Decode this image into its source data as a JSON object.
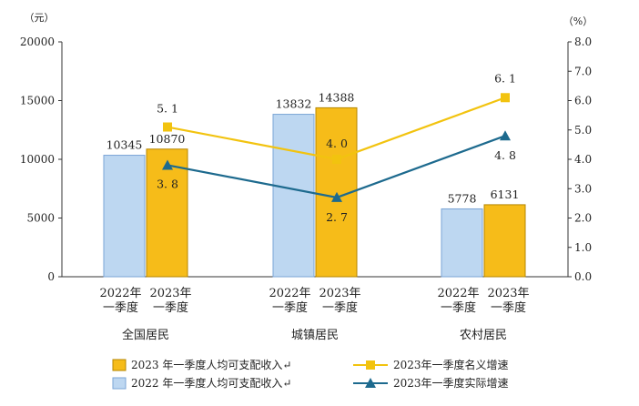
{
  "chart_data": {
    "type": "bar",
    "left_unit": "（元）",
    "right_unit": "（%）",
    "left_axis": {
      "min": 0,
      "max": 20000,
      "ticks": [
        "0",
        "5000",
        "10000",
        "15000",
        "20000"
      ]
    },
    "right_axis": {
      "min": 0,
      "max": 8,
      "ticks": [
        "0.0",
        "1.0",
        "2.0",
        "3.0",
        "4.0",
        "5.0",
        "6.0",
        "7.0",
        "8.0"
      ]
    },
    "groups": [
      {
        "name": "全国居民",
        "bar_labels": [
          "2022年\n一季度",
          "2023年\n一季度"
        ]
      },
      {
        "name": "城镇居民",
        "bar_labels": [
          "2022年\n一季度",
          "2023年\n一季度"
        ]
      },
      {
        "name": "农村居民",
        "bar_labels": [
          "2022年\n一季度",
          "2023年\n一季度"
        ]
      }
    ],
    "categories": [
      "全国居民",
      "城镇居民",
      "农村居民"
    ],
    "series": [
      {
        "name": "2022 年一季度人均可支配收入↵",
        "kind": "bar",
        "axis": "left",
        "color": "#bdd7f1",
        "border": "#7aa4d6",
        "values": [
          10345,
          13832,
          5778
        ],
        "labels": [
          "10345",
          "13832",
          "5778"
        ]
      },
      {
        "name": "2023 年一季度人均可支配收入↵",
        "kind": "bar",
        "axis": "left",
        "color": "#f6bc19",
        "border": "#b58600",
        "values": [
          10870,
          14388,
          6131
        ],
        "labels": [
          "10870",
          "14388",
          "6131"
        ]
      },
      {
        "name": "2023年一季度名义增速",
        "kind": "line",
        "axis": "right",
        "color": "#f2c30f",
        "marker": "square",
        "values": [
          5.1,
          4.0,
          6.1
        ],
        "labels": [
          "5. 1",
          "4. 0",
          "6. 1"
        ]
      },
      {
        "name": "2023年一季度实际增速",
        "kind": "line",
        "axis": "right",
        "color": "#1d6a8e",
        "marker": "triangle",
        "values": [
          3.8,
          2.7,
          4.8
        ],
        "labels": [
          "3. 8",
          "2. 7",
          "4. 8"
        ]
      }
    ],
    "grid": false,
    "legend_position": "bottom"
  }
}
